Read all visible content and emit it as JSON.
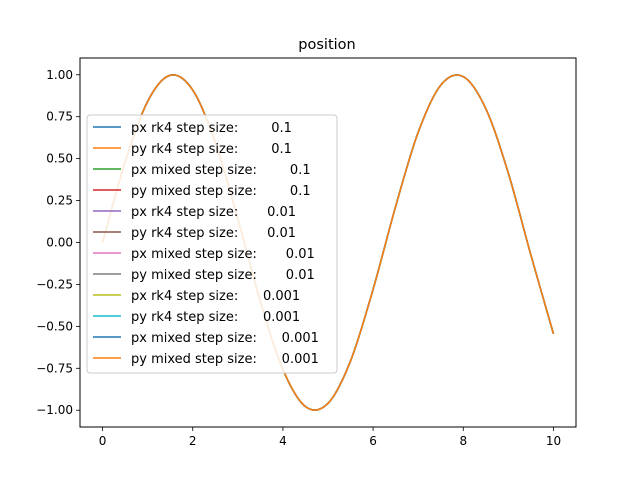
{
  "chart_data": {
    "type": "line",
    "title": "position",
    "xlabel": "",
    "ylabel": "",
    "xlim": [
      -0.5,
      10.5
    ],
    "ylim": [
      -1.1,
      1.1
    ],
    "xticks": [
      0,
      2,
      4,
      6,
      8,
      10
    ],
    "xtick_labels": [
      "0",
      "2",
      "4",
      "6",
      "8",
      "10"
    ],
    "yticks": [
      -1.0,
      -0.75,
      -0.5,
      -0.25,
      0.0,
      0.25,
      0.5,
      0.75,
      1.0
    ],
    "ytick_labels": [
      "−1.00",
      "−0.75",
      "−0.50",
      "−0.25",
      "0.00",
      "0.25",
      "0.50",
      "0.75",
      "1.00"
    ],
    "grid": false,
    "legend_position": "center-left",
    "x": [
      0,
      0.5,
      1,
      1.5,
      2,
      2.5,
      3,
      3.5,
      4,
      4.5,
      5,
      5.5,
      6,
      6.5,
      7,
      7.5,
      8,
      8.5,
      9,
      9.5,
      10
    ],
    "series": [
      {
        "name": "px rk4 step size:        0.1",
        "color": "#1f77b4",
        "values": [
          0.0,
          0.479,
          0.841,
          0.997,
          0.909,
          0.598,
          0.141,
          -0.351,
          -0.757,
          -0.978,
          -0.959,
          -0.706,
          -0.279,
          0.215,
          0.657,
          0.938,
          0.989,
          0.798,
          0.412,
          -0.075,
          -0.544
        ]
      },
      {
        "name": "py rk4 step size:        0.1",
        "color": "#ff7f0e",
        "values": [
          0.0,
          0.479,
          0.841,
          0.997,
          0.909,
          0.598,
          0.141,
          -0.351,
          -0.757,
          -0.978,
          -0.959,
          -0.706,
          -0.279,
          0.215,
          0.657,
          0.938,
          0.989,
          0.798,
          0.412,
          -0.075,
          -0.544
        ]
      },
      {
        "name": "px mixed step size:        0.1",
        "color": "#2ca02c",
        "values": [
          0.0,
          0.479,
          0.841,
          0.997,
          0.909,
          0.598,
          0.141,
          -0.351,
          -0.757,
          -0.978,
          -0.959,
          -0.706,
          -0.279,
          0.215,
          0.657,
          0.938,
          0.989,
          0.798,
          0.412,
          -0.075,
          -0.544
        ]
      },
      {
        "name": "py mixed step size:        0.1",
        "color": "#d62728",
        "values": [
          0.0,
          0.479,
          0.841,
          0.997,
          0.909,
          0.598,
          0.141,
          -0.351,
          -0.757,
          -0.978,
          -0.959,
          -0.706,
          -0.279,
          0.215,
          0.657,
          0.938,
          0.989,
          0.798,
          0.412,
          -0.075,
          -0.544
        ]
      },
      {
        "name": "px rk4 step size:       0.01",
        "color": "#9467bd",
        "values": [
          0.0,
          0.479,
          0.841,
          0.997,
          0.909,
          0.598,
          0.141,
          -0.351,
          -0.757,
          -0.978,
          -0.959,
          -0.706,
          -0.279,
          0.215,
          0.657,
          0.938,
          0.989,
          0.798,
          0.412,
          -0.075,
          -0.544
        ]
      },
      {
        "name": "py rk4 step size:       0.01",
        "color": "#8c564b",
        "values": [
          0.0,
          0.479,
          0.841,
          0.997,
          0.909,
          0.598,
          0.141,
          -0.351,
          -0.757,
          -0.978,
          -0.959,
          -0.706,
          -0.279,
          0.215,
          0.657,
          0.938,
          0.989,
          0.798,
          0.412,
          -0.075,
          -0.544
        ]
      },
      {
        "name": "px mixed step size:       0.01",
        "color": "#e377c2",
        "values": [
          0.0,
          0.479,
          0.841,
          0.997,
          0.909,
          0.598,
          0.141,
          -0.351,
          -0.757,
          -0.978,
          -0.959,
          -0.706,
          -0.279,
          0.215,
          0.657,
          0.938,
          0.989,
          0.798,
          0.412,
          -0.075,
          -0.544
        ]
      },
      {
        "name": "py mixed step size:       0.01",
        "color": "#7f7f7f",
        "values": [
          0.0,
          0.479,
          0.841,
          0.997,
          0.909,
          0.598,
          0.141,
          -0.351,
          -0.757,
          -0.978,
          -0.959,
          -0.706,
          -0.279,
          0.215,
          0.657,
          0.938,
          0.989,
          0.798,
          0.412,
          -0.075,
          -0.544
        ]
      },
      {
        "name": "px rk4 step size:      0.001",
        "color": "#bcbd22",
        "values": [
          0.0,
          0.479,
          0.841,
          0.997,
          0.909,
          0.598,
          0.141,
          -0.351,
          -0.757,
          -0.978,
          -0.959,
          -0.706,
          -0.279,
          0.215,
          0.657,
          0.938,
          0.989,
          0.798,
          0.412,
          -0.075,
          -0.544
        ]
      },
      {
        "name": "py rk4 step size:      0.001",
        "color": "#17becf",
        "values": [
          0.0,
          0.479,
          0.841,
          0.997,
          0.909,
          0.598,
          0.141,
          -0.351,
          -0.757,
          -0.978,
          -0.959,
          -0.706,
          -0.279,
          0.215,
          0.657,
          0.938,
          0.989,
          0.798,
          0.412,
          -0.075,
          -0.544
        ]
      },
      {
        "name": "px mixed step size:      0.001",
        "color": "#1f77b4",
        "values": [
          0.0,
          0.479,
          0.841,
          0.997,
          0.909,
          0.598,
          0.141,
          -0.351,
          -0.757,
          -0.978,
          -0.959,
          -0.706,
          -0.279,
          0.215,
          0.657,
          0.938,
          0.989,
          0.798,
          0.412,
          -0.075,
          -0.544
        ]
      },
      {
        "name": "py mixed step size:      0.001",
        "color": "#ff7f0e",
        "values": [
          0.0,
          0.479,
          0.841,
          0.997,
          0.909,
          0.598,
          0.141,
          -0.351,
          -0.757,
          -0.978,
          -0.959,
          -0.706,
          -0.279,
          0.215,
          0.657,
          0.938,
          0.989,
          0.798,
          0.412,
          -0.075,
          -0.544
        ]
      }
    ]
  }
}
